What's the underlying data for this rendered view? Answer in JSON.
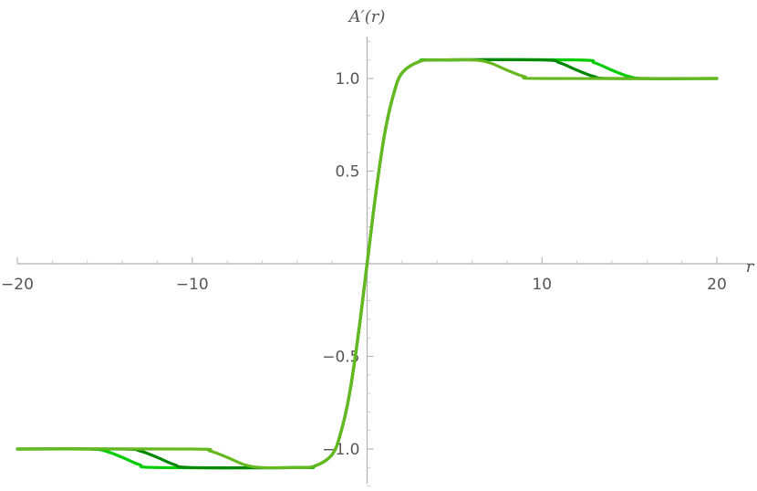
{
  "chart_data": {
    "type": "line",
    "title": "",
    "xlabel": "r",
    "ylabel": "A′(r)",
    "xlim": [
      -20,
      20
    ],
    "ylim": [
      -1.2,
      1.2
    ],
    "grid": false,
    "x_ticks": [
      {
        "value": -20,
        "label": "−20"
      },
      {
        "value": -10,
        "label": "−10"
      },
      {
        "value": 10,
        "label": "10"
      },
      {
        "value": 20,
        "label": "20"
      }
    ],
    "y_ticks": [
      {
        "value": 1.0,
        "label": "1.0"
      },
      {
        "value": 0.5,
        "label": "0.5"
      },
      {
        "value": -0.5,
        "label": "−0.5"
      },
      {
        "value": -1.0,
        "label": "−1.0"
      }
    ],
    "series": [
      {
        "color": "#00cc00",
        "x": [
          -20,
          -16,
          -15,
          -14,
          -13,
          -12,
          -4,
          -3,
          -2,
          -1.5,
          -1,
          -0.5,
          0,
          0.5,
          1,
          1.5,
          2,
          3,
          4,
          12,
          13,
          14,
          15,
          16,
          20
        ],
        "y": [
          -1.0,
          -1.0,
          -1.01,
          -1.045,
          -1.085,
          -1.1,
          -1.1,
          -1.092,
          -1.03,
          -0.91,
          -0.7,
          -0.38,
          0.0,
          0.38,
          0.7,
          0.91,
          1.03,
          1.092,
          1.1,
          1.1,
          1.085,
          1.045,
          1.01,
          1.0,
          1.0
        ]
      },
      {
        "color": "#008800",
        "x": [
          -20,
          -14,
          -13,
          -12,
          -11,
          -10,
          -4,
          -3,
          -2,
          -1.5,
          -1,
          -0.5,
          0,
          0.5,
          1,
          1.5,
          2,
          3,
          4,
          10,
          11,
          12,
          13,
          14,
          20
        ],
        "y": [
          -1.0,
          -1.0,
          -1.01,
          -1.045,
          -1.085,
          -1.1,
          -1.1,
          -1.092,
          -1.03,
          -0.91,
          -0.7,
          -0.38,
          0.0,
          0.38,
          0.7,
          0.91,
          1.03,
          1.092,
          1.1,
          1.1,
          1.085,
          1.045,
          1.01,
          1.0,
          1.0
        ]
      },
      {
        "color": "#66b820",
        "x": [
          -20,
          -10,
          -9,
          -8,
          -7,
          -6,
          -4,
          -3,
          -2,
          -1.5,
          -1,
          -0.5,
          0,
          0.5,
          1,
          1.5,
          2,
          3,
          4,
          6,
          7,
          8,
          9,
          10,
          20
        ],
        "y": [
          -1.0,
          -1.0,
          -1.01,
          -1.045,
          -1.085,
          -1.1,
          -1.1,
          -1.092,
          -1.03,
          -0.91,
          -0.7,
          -0.38,
          0.0,
          0.38,
          0.7,
          0.91,
          1.03,
          1.092,
          1.1,
          1.1,
          1.085,
          1.045,
          1.01,
          1.0,
          1.0
        ]
      }
    ]
  }
}
